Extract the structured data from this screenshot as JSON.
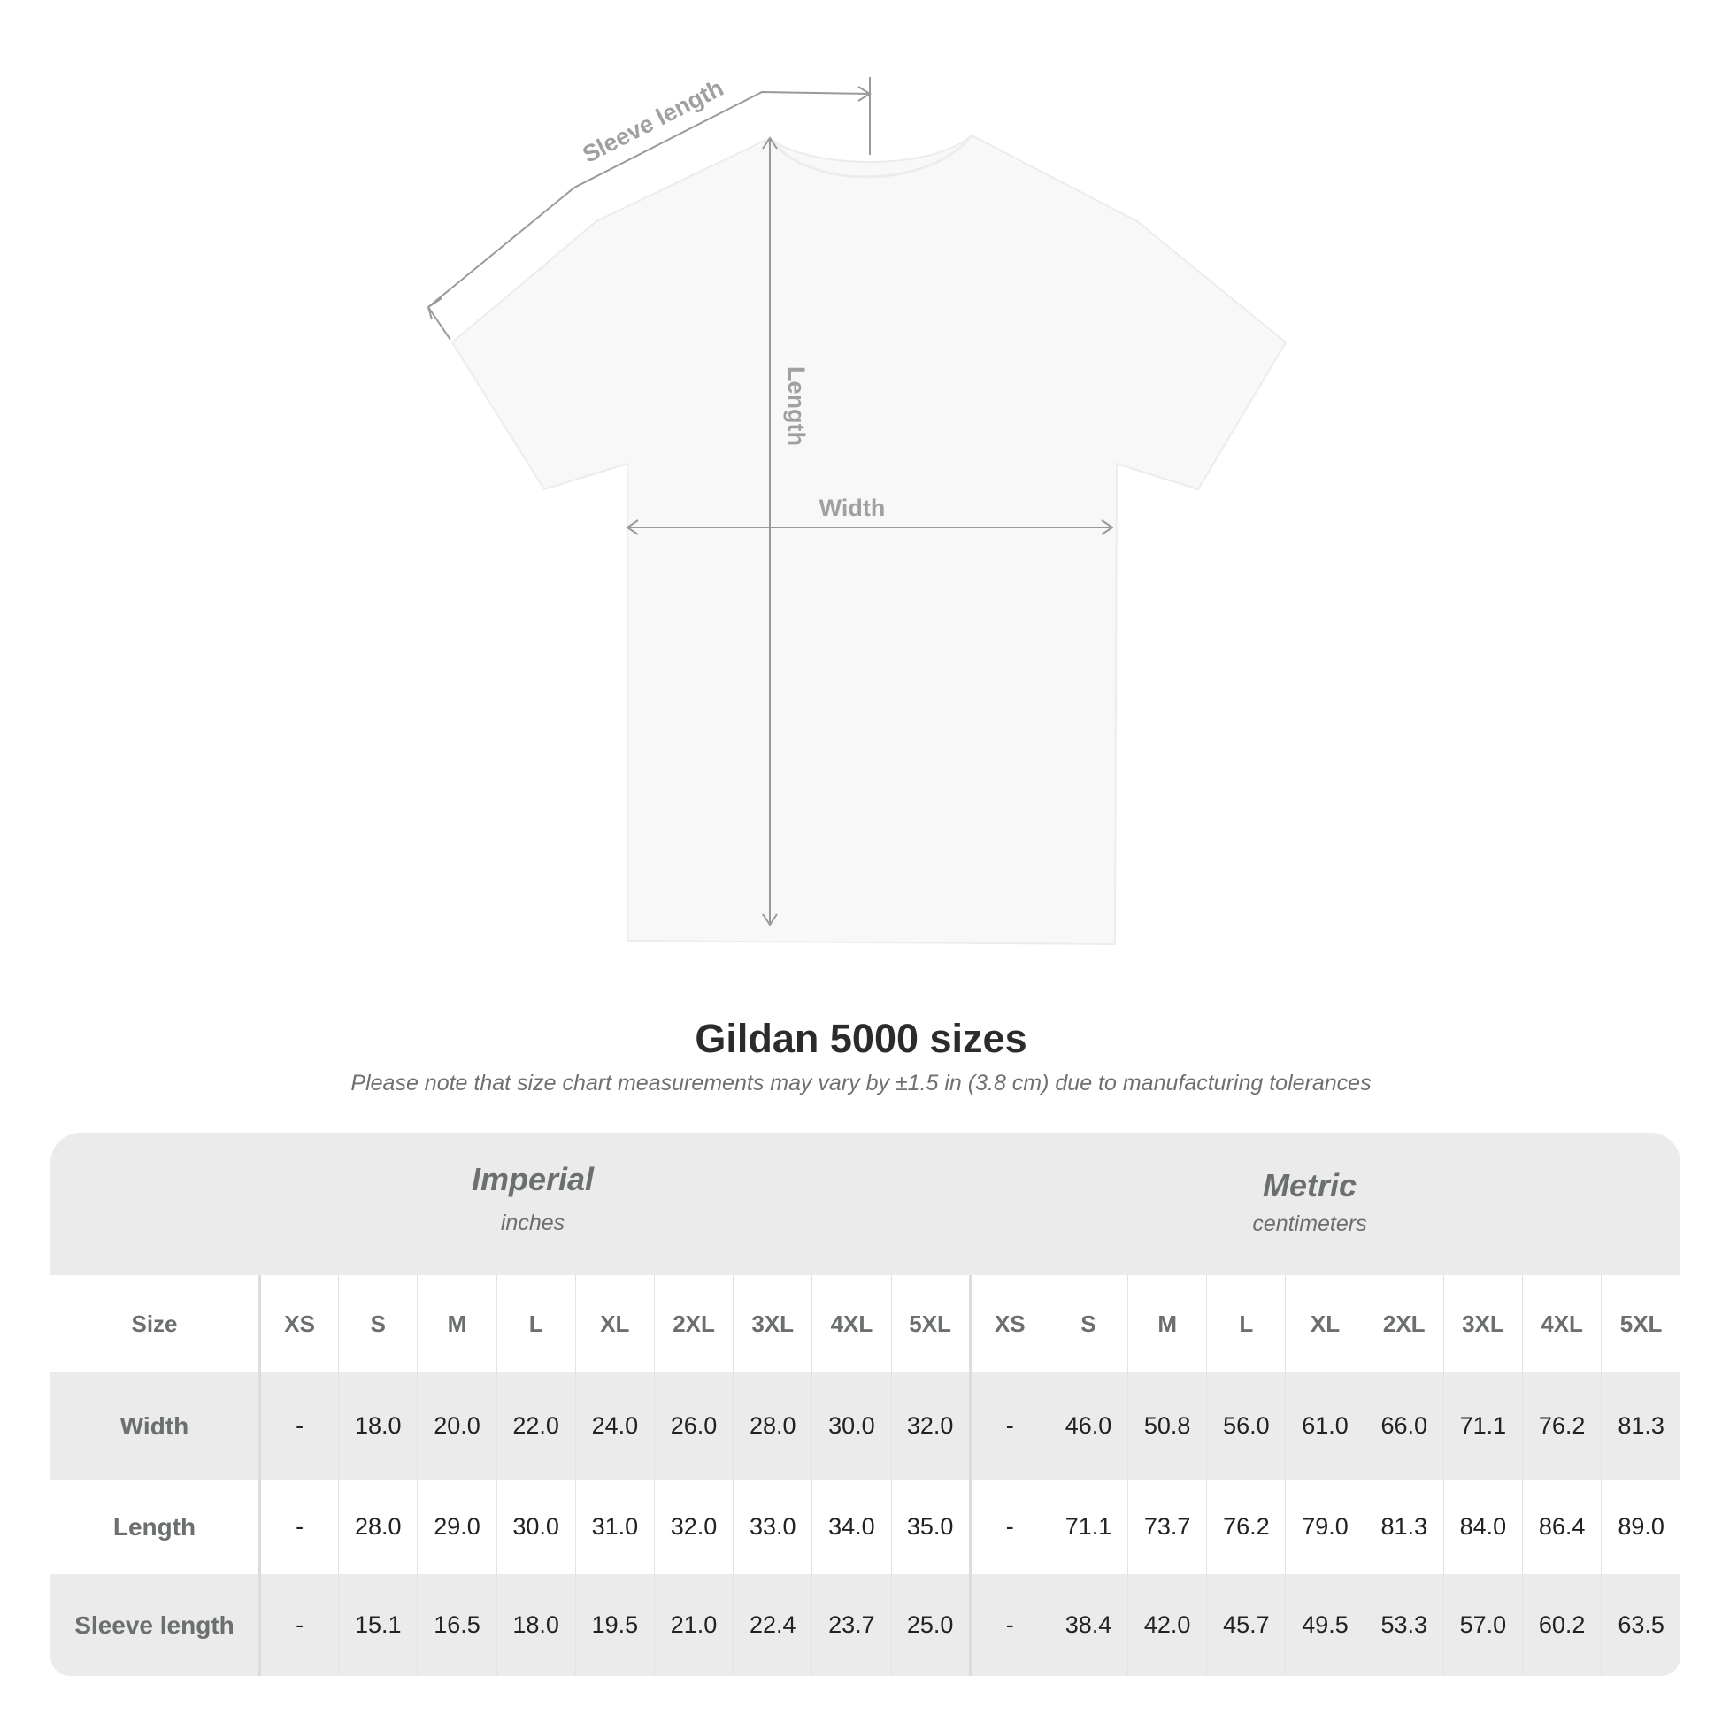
{
  "diagram": {
    "labels": {
      "sleeve": "Sleeve length",
      "length": "Length",
      "width": "Width"
    },
    "line_color": "#9a9a9a",
    "shirt_color": "#f8f8f8"
  },
  "title": "Gildan 5000 sizes",
  "note": "Please note that size chart measurements may vary by ±1.5 in (3.8 cm) due to manufacturing tolerances",
  "table": {
    "imperial": {
      "name": "Imperial",
      "unit": "inches"
    },
    "metric": {
      "name": "Metric",
      "unit": "centimeters"
    },
    "size_label": "Size",
    "sizes": [
      "XS",
      "S",
      "M",
      "L",
      "XL",
      "2XL",
      "3XL",
      "4XL",
      "5XL"
    ],
    "rows": [
      {
        "label": "Width",
        "imperial": [
          "-",
          "18.0",
          "20.0",
          "22.0",
          "24.0",
          "26.0",
          "28.0",
          "30.0",
          "32.0"
        ],
        "metric": [
          "-",
          "46.0",
          "50.8",
          "56.0",
          "61.0",
          "66.0",
          "71.1",
          "76.2",
          "81.3"
        ]
      },
      {
        "label": "Length",
        "imperial": [
          "-",
          "28.0",
          "29.0",
          "30.0",
          "31.0",
          "32.0",
          "33.0",
          "34.0",
          "35.0"
        ],
        "metric": [
          "-",
          "71.1",
          "73.7",
          "76.2",
          "79.0",
          "81.3",
          "84.0",
          "86.4",
          "89.0"
        ]
      },
      {
        "label": "Sleeve length",
        "imperial": [
          "-",
          "15.1",
          "16.5",
          "18.0",
          "19.5",
          "21.0",
          "22.4",
          "23.7",
          "25.0"
        ],
        "metric": [
          "-",
          "38.4",
          "42.0",
          "45.7",
          "49.5",
          "53.3",
          "57.0",
          "60.2",
          "63.5"
        ]
      }
    ],
    "header_bg": "#ebebeb"
  }
}
